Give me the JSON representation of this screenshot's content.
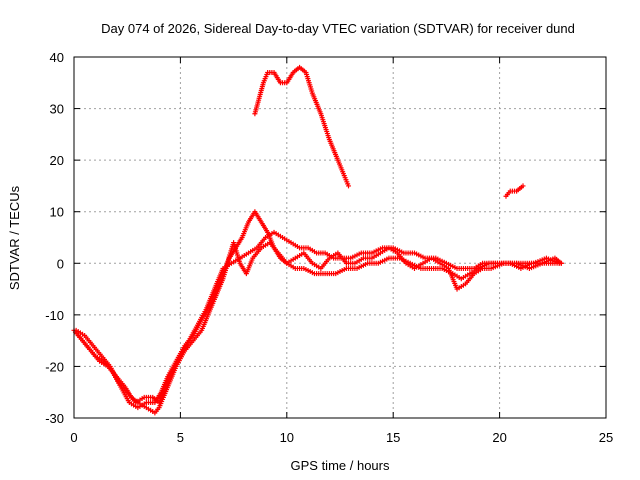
{
  "chart_data": {
    "type": "scatter",
    "title": "Day 074 of 2026, Sidereal Day-to-day VTEC variation (SDTVAR) for receiver dund",
    "xlabel": "GPS time / hours",
    "ylabel": "SDTVAR / TECUs",
    "xlim": [
      0,
      25
    ],
    "ylim": [
      -30,
      40
    ],
    "xticks": [
      0,
      5,
      10,
      15,
      20,
      25
    ],
    "yticks": [
      -30,
      -20,
      -10,
      0,
      10,
      20,
      30,
      40
    ],
    "x_tick_labels": [
      "0",
      "5",
      "10",
      "15",
      "20",
      "25"
    ],
    "y_tick_labels": [
      "-30",
      "-20",
      "-10",
      "0",
      "10",
      "20",
      "30",
      "40"
    ],
    "grid": true,
    "marker": "+",
    "color": "#ff0000",
    "series": [
      {
        "name": "track-1",
        "points": [
          [
            0,
            -13
          ],
          [
            0.4,
            -15
          ],
          [
            0.8,
            -17
          ],
          [
            1.2,
            -19
          ],
          [
            1.6,
            -20
          ],
          [
            2.0,
            -22
          ],
          [
            2.4,
            -24
          ],
          [
            2.7,
            -26
          ],
          [
            3.0,
            -27
          ],
          [
            3.4,
            -28
          ],
          [
            3.8,
            -29
          ],
          [
            4.0,
            -28
          ],
          [
            4.2,
            -26
          ],
          [
            4.5,
            -23
          ],
          [
            4.8,
            -20
          ],
          [
            5.2,
            -17
          ],
          [
            5.6,
            -15
          ],
          [
            6.0,
            -13
          ],
          [
            6.3,
            -10
          ],
          [
            6.6,
            -7
          ],
          [
            7.0,
            -3
          ],
          [
            7.3,
            1
          ],
          [
            7.6,
            3
          ],
          [
            7.9,
            5
          ],
          [
            8.2,
            8
          ],
          [
            8.5,
            10
          ],
          [
            8.8,
            8
          ],
          [
            9.1,
            6
          ],
          [
            9.4,
            3
          ],
          [
            9.7,
            1
          ],
          [
            10.0,
            0
          ],
          [
            10.4,
            -1
          ],
          [
            10.8,
            -1
          ],
          [
            11.3,
            -2
          ],
          [
            11.8,
            -2
          ],
          [
            12.3,
            -2
          ],
          [
            12.8,
            -1
          ],
          [
            13.3,
            -1
          ],
          [
            13.8,
            0
          ],
          [
            14.3,
            0
          ],
          [
            14.8,
            1
          ],
          [
            15.3,
            1
          ],
          [
            15.8,
            0
          ],
          [
            16.3,
            -1
          ],
          [
            16.8,
            -1
          ],
          [
            17.3,
            -1
          ],
          [
            17.8,
            -2
          ],
          [
            18.2,
            -3
          ],
          [
            18.6,
            -2
          ],
          [
            19.0,
            -1
          ],
          [
            19.5,
            0
          ],
          [
            20.0,
            0
          ],
          [
            20.5,
            0
          ],
          [
            21.0,
            -1
          ],
          [
            21.5,
            0
          ],
          [
            22.0,
            0
          ],
          [
            22.5,
            0
          ],
          [
            22.9,
            0
          ]
        ]
      },
      {
        "name": "track-2",
        "points": [
          [
            0.1,
            -13
          ],
          [
            0.5,
            -14
          ],
          [
            0.9,
            -16
          ],
          [
            1.3,
            -18
          ],
          [
            1.7,
            -20
          ],
          [
            2.1,
            -23
          ],
          [
            2.5,
            -25
          ],
          [
            2.9,
            -27
          ],
          [
            3.3,
            -26
          ],
          [
            3.7,
            -26
          ],
          [
            4.0,
            -27
          ],
          [
            4.3,
            -24
          ],
          [
            4.6,
            -21
          ],
          [
            5.0,
            -18
          ],
          [
            5.4,
            -15
          ],
          [
            5.8,
            -12
          ],
          [
            6.2,
            -9
          ],
          [
            6.6,
            -5
          ],
          [
            7.0,
            -1
          ],
          [
            7.4,
            0
          ],
          [
            7.8,
            1
          ],
          [
            8.2,
            2
          ],
          [
            8.6,
            3
          ],
          [
            9.0,
            5
          ],
          [
            9.4,
            6
          ],
          [
            9.8,
            5
          ],
          [
            10.2,
            4
          ],
          [
            10.6,
            3
          ],
          [
            11.0,
            3
          ],
          [
            11.4,
            2
          ],
          [
            11.8,
            2
          ],
          [
            12.2,
            1
          ],
          [
            12.6,
            1
          ],
          [
            13.0,
            1
          ],
          [
            13.5,
            2
          ],
          [
            14.0,
            2
          ],
          [
            14.5,
            3
          ],
          [
            15.0,
            3
          ],
          [
            15.5,
            2
          ],
          [
            16.0,
            2
          ],
          [
            16.5,
            1
          ],
          [
            17.0,
            1
          ],
          [
            17.5,
            0
          ],
          [
            18.0,
            -1
          ],
          [
            18.4,
            -1
          ],
          [
            18.8,
            -1
          ],
          [
            19.2,
            0
          ],
          [
            19.8,
            0
          ],
          [
            20.4,
            0
          ],
          [
            21.0,
            0
          ],
          [
            21.6,
            0
          ],
          [
            22.2,
            1
          ],
          [
            22.8,
            0
          ]
        ]
      },
      {
        "name": "track-3",
        "points": [
          [
            0.2,
            -14
          ],
          [
            0.6,
            -16
          ],
          [
            1.0,
            -18
          ],
          [
            1.4,
            -19
          ],
          [
            1.8,
            -21
          ],
          [
            2.2,
            -24
          ],
          [
            2.6,
            -27
          ],
          [
            3.0,
            -28
          ],
          [
            3.4,
            -27
          ],
          [
            3.8,
            -27
          ],
          [
            4.1,
            -25
          ],
          [
            4.4,
            -22
          ],
          [
            4.8,
            -19
          ],
          [
            5.2,
            -16
          ],
          [
            5.6,
            -14
          ],
          [
            6.0,
            -11
          ],
          [
            6.4,
            -8
          ],
          [
            6.8,
            -4
          ],
          [
            7.2,
            0
          ],
          [
            7.5,
            4
          ],
          [
            7.8,
            0
          ],
          [
            8.1,
            -2
          ],
          [
            8.4,
            1
          ],
          [
            8.8,
            3
          ],
          [
            9.2,
            4
          ],
          [
            9.6,
            2
          ],
          [
            10.0,
            0
          ],
          [
            10.4,
            1
          ],
          [
            10.8,
            2
          ],
          [
            11.2,
            0
          ],
          [
            11.6,
            -1
          ],
          [
            12.0,
            1
          ],
          [
            12.4,
            2
          ],
          [
            12.8,
            0
          ],
          [
            13.2,
            0
          ],
          [
            13.6,
            1
          ],
          [
            14.0,
            1
          ],
          [
            14.4,
            2
          ],
          [
            14.8,
            3
          ],
          [
            15.2,
            2
          ],
          [
            15.6,
            0
          ],
          [
            16.0,
            -1
          ],
          [
            16.4,
            0
          ],
          [
            16.8,
            1
          ],
          [
            17.2,
            0
          ],
          [
            17.6,
            -1
          ],
          [
            18.0,
            -5
          ],
          [
            18.4,
            -4
          ],
          [
            18.8,
            -2
          ],
          [
            19.2,
            -1
          ],
          [
            19.6,
            -1
          ],
          [
            20.2,
            0
          ],
          [
            20.8,
            0
          ],
          [
            21.4,
            -1
          ],
          [
            22.0,
            0
          ],
          [
            22.6,
            1
          ],
          [
            22.9,
            0
          ]
        ]
      },
      {
        "name": "track-upper",
        "points": [
          [
            8.5,
            29
          ],
          [
            8.7,
            32
          ],
          [
            8.9,
            35
          ],
          [
            9.1,
            37
          ],
          [
            9.4,
            37
          ],
          [
            9.7,
            35
          ],
          [
            10.0,
            35
          ],
          [
            10.3,
            37
          ],
          [
            10.6,
            38
          ],
          [
            10.9,
            37
          ],
          [
            11.2,
            33
          ],
          [
            11.6,
            29
          ],
          [
            12.0,
            24
          ],
          [
            12.4,
            20
          ],
          [
            12.7,
            17
          ],
          [
            12.9,
            15
          ]
        ]
      },
      {
        "name": "track-late",
        "points": [
          [
            20.3,
            13
          ],
          [
            20.5,
            14
          ],
          [
            20.8,
            14
          ],
          [
            21.1,
            15
          ]
        ]
      }
    ]
  }
}
